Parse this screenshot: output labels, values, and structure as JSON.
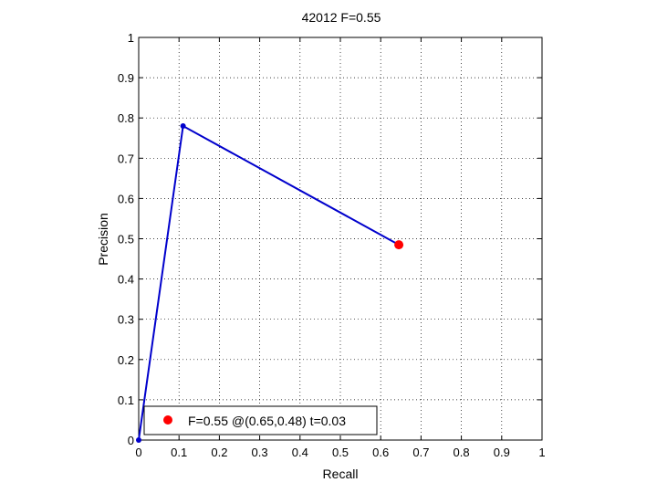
{
  "chart_data": {
    "type": "line",
    "title": "42012 F=0.55",
    "xlabel": "Recall",
    "ylabel": "Precision",
    "xlim": [
      0,
      1
    ],
    "ylim": [
      0,
      1
    ],
    "xticks": [
      "0",
      "0.1",
      "0.2",
      "0.3",
      "0.4",
      "0.5",
      "0.6",
      "0.7",
      "0.8",
      "0.9",
      "1"
    ],
    "yticks": [
      "0",
      "0.1",
      "0.2",
      "0.3",
      "0.4",
      "0.5",
      "0.6",
      "0.7",
      "0.8",
      "0.9",
      "1"
    ],
    "tick_values": [
      0,
      0.1,
      0.2,
      0.3,
      0.4,
      0.5,
      0.6,
      0.7,
      0.8,
      0.9,
      1
    ],
    "grid": true,
    "legend_position": "bottom-left",
    "series": [
      {
        "color": "#0000cc",
        "points": [
          {
            "x": 0.0,
            "y": 0.0
          },
          {
            "x": 0.11,
            "y": 0.78
          },
          {
            "x": 0.645,
            "y": 0.485
          }
        ]
      }
    ],
    "best_point": {
      "x": 0.645,
      "y": 0.485,
      "color": "#ff0000",
      "label": "F=0.55 @(0.65,0.48) t=0.03"
    }
  }
}
